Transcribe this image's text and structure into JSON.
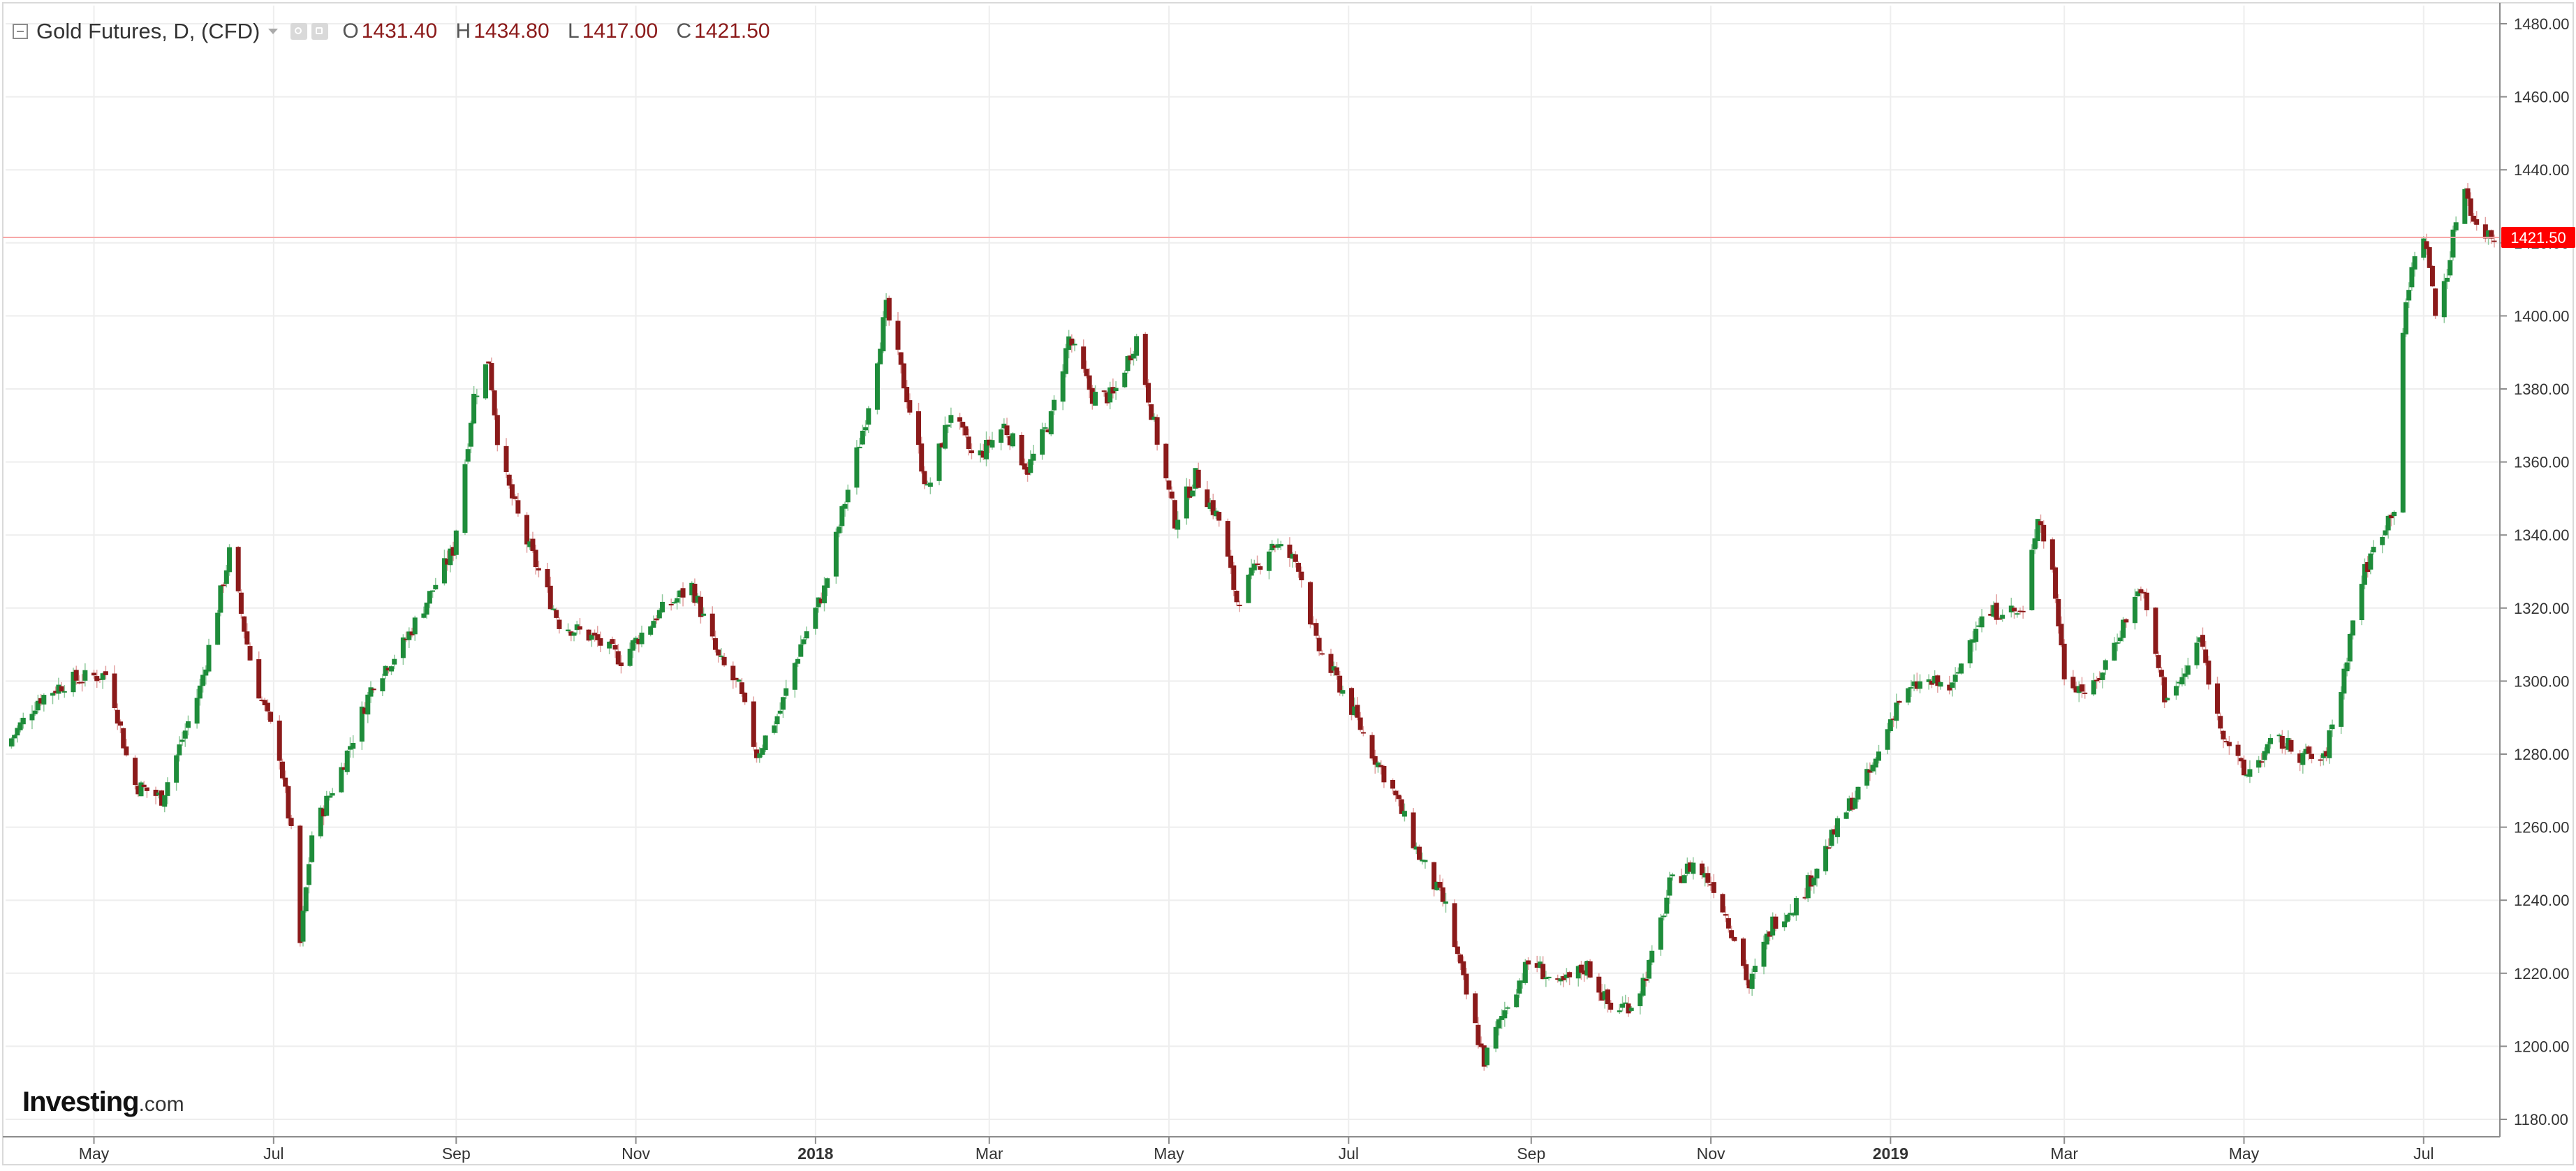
{
  "legend": {
    "title": "Gold Futures, D, (CFD)",
    "open_label": "O",
    "open": "1431.40",
    "high_label": "H",
    "high": "1434.80",
    "low_label": "L",
    "low": "1417.00",
    "close_label": "C",
    "close": "1421.50",
    "icons": [
      "collapse-icon",
      "chevron-down-icon",
      "settings-icon",
      "gear-icon"
    ]
  },
  "logo": {
    "brand": "Investing",
    "domain": ".com"
  },
  "colors": {
    "up": "#1e8c3a",
    "down": "#8b1a1a",
    "price_line": "#f7a8a8",
    "price_label_bg": "#ff0000",
    "grid": "#eeeeee"
  },
  "chart_data": {
    "type": "candlestick",
    "instrument": "Gold Futures",
    "interval": "D",
    "last_price": 1421.5,
    "last_price_label": "1421.50",
    "ylim": [
      1174,
      1484
    ],
    "yticks": [
      {
        "value": 1480,
        "label": "1480.00"
      },
      {
        "value": 1460,
        "label": "1460.00"
      },
      {
        "value": 1440,
        "label": "1440.00"
      },
      {
        "value": 1420,
        "label": "1420.00"
      },
      {
        "value": 1400,
        "label": "1400.00"
      },
      {
        "value": 1380,
        "label": "1380.00"
      },
      {
        "value": 1360,
        "label": "1360.00"
      },
      {
        "value": 1340,
        "label": "1340.00"
      },
      {
        "value": 1320,
        "label": "1320.00"
      },
      {
        "value": 1300,
        "label": "1300.00"
      },
      {
        "value": 1280,
        "label": "1280.00"
      },
      {
        "value": 1260,
        "label": "1260.00"
      },
      {
        "value": 1240,
        "label": "1240.00"
      },
      {
        "value": 1220,
        "label": "1220.00"
      },
      {
        "value": 1200,
        "label": "1200.00"
      },
      {
        "value": 1180,
        "label": "1180.00"
      }
    ],
    "xticks": [
      {
        "date": "2017-05-01",
        "label": "May",
        "bold": false
      },
      {
        "date": "2017-07-01",
        "label": "Jul",
        "bold": false
      },
      {
        "date": "2017-09-01",
        "label": "Sep",
        "bold": false
      },
      {
        "date": "2017-11-01",
        "label": "Nov",
        "bold": false
      },
      {
        "date": "2018-01-01",
        "label": "2018",
        "bold": true
      },
      {
        "date": "2018-03-01",
        "label": "Mar",
        "bold": false
      },
      {
        "date": "2018-05-01",
        "label": "May",
        "bold": false
      },
      {
        "date": "2018-07-01",
        "label": "Jul",
        "bold": false
      },
      {
        "date": "2018-09-01",
        "label": "Sep",
        "bold": false
      },
      {
        "date": "2018-11-01",
        "label": "Nov",
        "bold": false
      },
      {
        "date": "2019-01-01",
        "label": "2019",
        "bold": true
      },
      {
        "date": "2019-03-01",
        "label": "Mar",
        "bold": false
      },
      {
        "date": "2019-05-01",
        "label": "May",
        "bold": false
      },
      {
        "date": "2019-07-01",
        "label": "Jul",
        "bold": false
      }
    ],
    "xrange": [
      "2017-04-01",
      "2019-07-25"
    ],
    "path": [
      [
        "2017-04-01",
        1282
      ],
      [
        "2017-04-12",
        1295
      ],
      [
        "2017-04-22",
        1300
      ],
      [
        "2017-05-06",
        1302
      ],
      [
        "2017-05-14",
        1272
      ],
      [
        "2017-05-24",
        1268
      ],
      [
        "2017-06-06",
        1298
      ],
      [
        "2017-06-16",
        1335
      ],
      [
        "2017-06-24",
        1302
      ],
      [
        "2017-07-03",
        1280
      ],
      [
        "2017-07-07",
        1258
      ],
      [
        "2017-07-10",
        1228
      ],
      [
        "2017-07-14",
        1258
      ],
      [
        "2017-07-24",
        1276
      ],
      [
        "2017-08-04",
        1300
      ],
      [
        "2017-08-14",
        1310
      ],
      [
        "2017-08-22",
        1322
      ],
      [
        "2017-08-31",
        1336
      ],
      [
        "2017-09-07",
        1378
      ],
      [
        "2017-09-12",
        1388
      ],
      [
        "2017-09-16",
        1360
      ],
      [
        "2017-09-24",
        1340
      ],
      [
        "2017-10-06",
        1316
      ],
      [
        "2017-10-17",
        1312
      ],
      [
        "2017-10-27",
        1306
      ],
      [
        "2017-11-08",
        1318
      ],
      [
        "2017-11-20",
        1326
      ],
      [
        "2017-11-29",
        1306
      ],
      [
        "2017-12-06",
        1298
      ],
      [
        "2017-12-12",
        1280
      ],
      [
        "2017-12-20",
        1292
      ],
      [
        "2017-12-27",
        1310
      ],
      [
        "2018-01-04",
        1325
      ],
      [
        "2018-01-10",
        1346
      ],
      [
        "2018-01-18",
        1372
      ],
      [
        "2018-01-25",
        1402
      ],
      [
        "2018-02-01",
        1378
      ],
      [
        "2018-02-08",
        1352
      ],
      [
        "2018-02-16",
        1374
      ],
      [
        "2018-02-24",
        1360
      ],
      [
        "2018-03-06",
        1370
      ],
      [
        "2018-03-14",
        1358
      ],
      [
        "2018-03-22",
        1372
      ],
      [
        "2018-03-28",
        1394
      ],
      [
        "2018-04-05",
        1378
      ],
      [
        "2018-04-12",
        1378
      ],
      [
        "2018-04-20",
        1394
      ],
      [
        "2018-04-27",
        1366
      ],
      [
        "2018-05-03",
        1344
      ],
      [
        "2018-05-10",
        1356
      ],
      [
        "2018-05-18",
        1344
      ],
      [
        "2018-05-24",
        1322
      ],
      [
        "2018-06-05",
        1338
      ],
      [
        "2018-06-14",
        1332
      ],
      [
        "2018-06-20",
        1310
      ],
      [
        "2018-06-30",
        1296
      ],
      [
        "2018-07-08",
        1282
      ],
      [
        "2018-07-16",
        1270
      ],
      [
        "2018-07-25",
        1252
      ],
      [
        "2018-08-03",
        1238
      ],
      [
        "2018-08-10",
        1214
      ],
      [
        "2018-08-16",
        1196
      ],
      [
        "2018-08-24",
        1212
      ],
      [
        "2018-09-01",
        1224
      ],
      [
        "2018-09-10",
        1216
      ],
      [
        "2018-09-20",
        1222
      ],
      [
        "2018-09-28",
        1210
      ],
      [
        "2018-10-06",
        1212
      ],
      [
        "2018-10-12",
        1224
      ],
      [
        "2018-10-18",
        1244
      ],
      [
        "2018-10-26",
        1250
      ],
      [
        "2018-11-02",
        1244
      ],
      [
        "2018-11-10",
        1228
      ],
      [
        "2018-11-14",
        1216
      ],
      [
        "2018-11-22",
        1234
      ],
      [
        "2018-12-01",
        1240
      ],
      [
        "2018-12-10",
        1254
      ],
      [
        "2018-12-18",
        1266
      ],
      [
        "2018-12-26",
        1276
      ],
      [
        "2019-01-03",
        1294
      ],
      [
        "2019-01-12",
        1300
      ],
      [
        "2019-01-22",
        1298
      ],
      [
        "2019-01-30",
        1316
      ],
      [
        "2019-02-08",
        1320
      ],
      [
        "2019-02-15",
        1318
      ],
      [
        "2019-02-20",
        1346
      ],
      [
        "2019-02-25",
        1330
      ],
      [
        "2019-03-01",
        1302
      ],
      [
        "2019-03-10",
        1296
      ],
      [
        "2019-03-20",
        1314
      ],
      [
        "2019-03-27",
        1326
      ],
      [
        "2019-04-04",
        1296
      ],
      [
        "2019-04-10",
        1300
      ],
      [
        "2019-04-16",
        1312
      ],
      [
        "2019-04-22",
        1290
      ],
      [
        "2019-05-01",
        1274
      ],
      [
        "2019-05-12",
        1284
      ],
      [
        "2019-05-20",
        1280
      ],
      [
        "2019-05-28",
        1278
      ],
      [
        "2019-06-03",
        1298
      ],
      [
        "2019-06-09",
        1326
      ],
      [
        "2019-06-16",
        1340
      ],
      [
        "2019-06-21",
        1348
      ],
      [
        "2019-06-24",
        1396
      ],
      [
        "2019-06-28",
        1418
      ],
      [
        "2019-07-02",
        1420
      ],
      [
        "2019-07-05",
        1400
      ],
      [
        "2019-07-10",
        1416
      ],
      [
        "2019-07-14",
        1438
      ],
      [
        "2019-07-19",
        1424
      ],
      [
        "2019-07-25",
        1421.5
      ]
    ],
    "note_data": "candles are approximated from the price path read off the chart"
  }
}
